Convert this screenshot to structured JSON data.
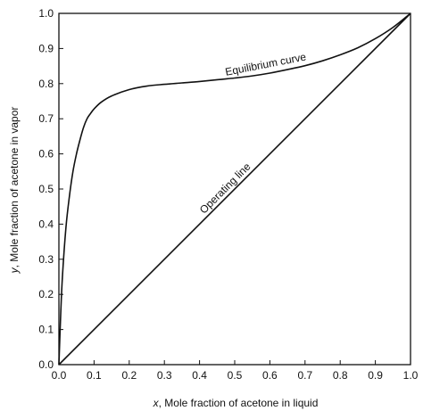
{
  "chart_data": {
    "type": "line",
    "xlabel_var": "x",
    "xlabel_text": ", Mole fraction of acetone in liquid",
    "ylabel_var": "y",
    "ylabel_text": ", Mole fraction of acetone in vapor",
    "xlim": [
      0.0,
      1.0
    ],
    "ylim": [
      0.0,
      1.0
    ],
    "x_ticks": [
      "0.0",
      "0.1",
      "0.2",
      "0.3",
      "0.4",
      "0.5",
      "0.6",
      "0.7",
      "0.8",
      "0.9",
      "1.0"
    ],
    "y_ticks": [
      "0.0",
      "0.1",
      "0.2",
      "0.3",
      "0.4",
      "0.5",
      "0.6",
      "0.7",
      "0.8",
      "0.9",
      "1.0"
    ],
    "grid": false,
    "series": [
      {
        "name": "Equilibrium curve",
        "x": [
          0.0,
          0.005,
          0.01,
          0.02,
          0.03,
          0.04,
          0.05,
          0.06,
          0.07,
          0.08,
          0.09,
          0.1,
          0.12,
          0.15,
          0.2,
          0.25,
          0.3,
          0.35,
          0.4,
          0.45,
          0.5,
          0.55,
          0.6,
          0.65,
          0.7,
          0.75,
          0.8,
          0.85,
          0.9,
          0.95,
          1.0
        ],
        "y": [
          0.0,
          0.14,
          0.25,
          0.39,
          0.48,
          0.55,
          0.6,
          0.64,
          0.675,
          0.7,
          0.715,
          0.728,
          0.747,
          0.765,
          0.783,
          0.793,
          0.798,
          0.802,
          0.806,
          0.811,
          0.816,
          0.822,
          0.83,
          0.84,
          0.851,
          0.865,
          0.882,
          0.902,
          0.928,
          0.96,
          1.0
        ]
      },
      {
        "name": "Operating line",
        "x": [
          0.0,
          1.0
        ],
        "y": [
          0.0,
          1.0
        ]
      }
    ],
    "annotations": [
      {
        "text": "Equilibrium curve",
        "x": 0.59,
        "y": 0.845,
        "angle_deg": -11
      },
      {
        "text": "Operating line",
        "x": 0.48,
        "y": 0.495,
        "angle_deg": -45
      }
    ]
  }
}
